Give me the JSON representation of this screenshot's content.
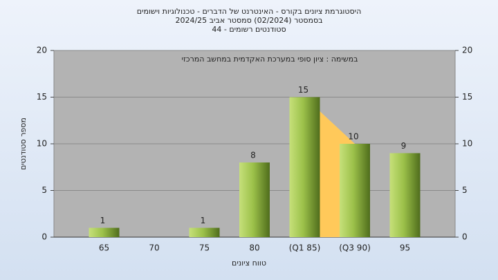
{
  "chart_data": {
    "type": "bar",
    "title": "היסטוגרמת ציונים בקורס - האינטרנט של הדברים - טכנולוגיות וישומים",
    "subtitle": "בסמסטר  (02/2024)  סמסטר אביב 2024/25",
    "subtitle2": "סטודנטים רשומים - 44",
    "annotation": "במשימה : ציון סופי במערכת האקדמית במחשב המרכזי",
    "x_label": "טווח ציונים",
    "y_label": "מספר סטודנטים",
    "categories": [
      "65",
      "70",
      "75",
      "80",
      "(Q1 85)",
      "(Q3 90)",
      "95"
    ],
    "values": [
      1,
      null,
      1,
      8,
      15,
      10,
      9
    ],
    "color": "#8fb33c",
    "ylim": [
      0,
      20
    ],
    "yticks": [
      0,
      5,
      10,
      15,
      20
    ],
    "y2lim": [
      0,
      20
    ],
    "y2ticks": [
      0,
      5,
      10,
      15,
      20
    ],
    "grid": true
  }
}
